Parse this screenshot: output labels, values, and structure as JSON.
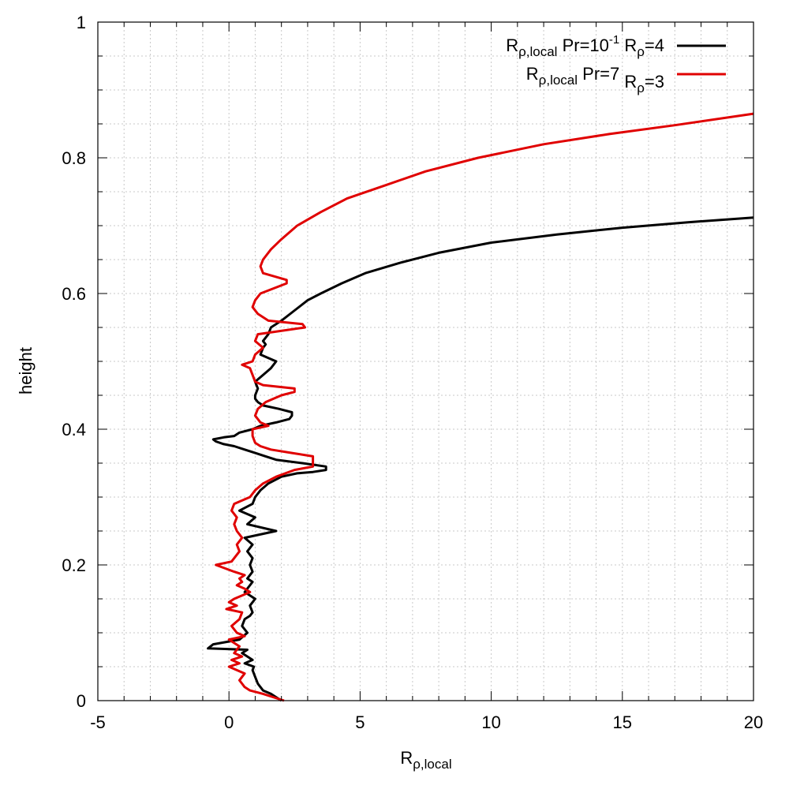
{
  "chart_data": {
    "type": "line",
    "title": "",
    "xlabel": {
      "main": "R",
      "sub": "ρ,local"
    },
    "ylabel": "height",
    "xlim": [
      -5,
      20
    ],
    "ylim": [
      0,
      1
    ],
    "xticks": [
      -5,
      0,
      5,
      10,
      15,
      20
    ],
    "xtick_labels": [
      "-5",
      "0",
      "5",
      "10",
      "15",
      "20"
    ],
    "yticks": [
      0,
      0.2,
      0.4,
      0.6,
      0.8,
      1
    ],
    "ytick_labels": [
      "0",
      "0.2",
      "0.4",
      "0.6",
      "0.8",
      "1"
    ],
    "grid": true,
    "legend_position": "top-right",
    "series": [
      {
        "name": "R_rho,local Pr=10^-1 R_rho=4",
        "legend": {
          "r": "R",
          "rsub": "ρ,local",
          "pr": " Pr=10",
          "prsup": "-1",
          "r2": " R",
          "r2sub": "ρ",
          "tail": "=4"
        },
        "color": "#000000",
        "points": [
          [
            2.0,
            0
          ],
          [
            1.6,
            0.01
          ],
          [
            1.3,
            0.015
          ],
          [
            1.2,
            0.02
          ],
          [
            1.1,
            0.025
          ],
          [
            1.05,
            0.03
          ],
          [
            1.0,
            0.035
          ],
          [
            0.9,
            0.045
          ],
          [
            0.95,
            0.05
          ],
          [
            0.6,
            0.055
          ],
          [
            0.9,
            0.06
          ],
          [
            0.5,
            0.07
          ],
          [
            0.7,
            0.075
          ],
          [
            -0.8,
            0.077
          ],
          [
            -0.6,
            0.083
          ],
          [
            0.4,
            0.09
          ],
          [
            0.7,
            0.1
          ],
          [
            0.5,
            0.11
          ],
          [
            0.6,
            0.12
          ],
          [
            0.8,
            0.125
          ],
          [
            0.9,
            0.13
          ],
          [
            0.8,
            0.14
          ],
          [
            1.0,
            0.15
          ],
          [
            0.6,
            0.16
          ],
          [
            0.9,
            0.175
          ],
          [
            0.7,
            0.18
          ],
          [
            0.9,
            0.19
          ],
          [
            0.8,
            0.2
          ],
          [
            0.9,
            0.21
          ],
          [
            0.7,
            0.22
          ],
          [
            0.9,
            0.23
          ],
          [
            0.6,
            0.24
          ],
          [
            1.8,
            0.25
          ],
          [
            0.7,
            0.26
          ],
          [
            1.0,
            0.27
          ],
          [
            0.4,
            0.28
          ],
          [
            0.9,
            0.29
          ],
          [
            1.0,
            0.3
          ],
          [
            1.2,
            0.31
          ],
          [
            1.5,
            0.32
          ],
          [
            2.0,
            0.33
          ],
          [
            2.6,
            0.335
          ],
          [
            3.2,
            0.337
          ],
          [
            3.7,
            0.34
          ],
          [
            3.7,
            0.345
          ],
          [
            2.8,
            0.35
          ],
          [
            1.8,
            0.355
          ],
          [
            1.4,
            0.36
          ],
          [
            1.0,
            0.365
          ],
          [
            0.6,
            0.37
          ],
          [
            0.2,
            0.375
          ],
          [
            -0.2,
            0.378
          ],
          [
            -0.5,
            0.382
          ],
          [
            -0.6,
            0.385
          ],
          [
            -0.2,
            0.388
          ],
          [
            0.2,
            0.39
          ],
          [
            0.4,
            0.395
          ],
          [
            0.9,
            0.4
          ],
          [
            1.2,
            0.405
          ],
          [
            1.8,
            0.41
          ],
          [
            2.3,
            0.415
          ],
          [
            2.4,
            0.42
          ],
          [
            2.4,
            0.425
          ],
          [
            1.9,
            0.43
          ],
          [
            1.3,
            0.435
          ],
          [
            1.1,
            0.44
          ],
          [
            1.0,
            0.445
          ],
          [
            1.0,
            0.45
          ],
          [
            1.1,
            0.46
          ],
          [
            1.0,
            0.47
          ],
          [
            1.3,
            0.48
          ],
          [
            1.6,
            0.49
          ],
          [
            1.8,
            0.5
          ],
          [
            1.5,
            0.505
          ],
          [
            1.2,
            0.51
          ],
          [
            1.3,
            0.52
          ],
          [
            1.4,
            0.525
          ],
          [
            1.3,
            0.53
          ],
          [
            1.5,
            0.54
          ],
          [
            1.6,
            0.55
          ],
          [
            2.0,
            0.56
          ],
          [
            2.5,
            0.575
          ],
          [
            3.0,
            0.59
          ],
          [
            3.5,
            0.6
          ],
          [
            4.3,
            0.615
          ],
          [
            5.2,
            0.63
          ],
          [
            6.5,
            0.645
          ],
          [
            8.0,
            0.66
          ],
          [
            10.0,
            0.675
          ],
          [
            12.5,
            0.687
          ],
          [
            15.0,
            0.697
          ],
          [
            17.5,
            0.705
          ],
          [
            20.0,
            0.712
          ]
        ]
      },
      {
        "name": "R_rho,local Pr=7 R_rho=3",
        "legend": {
          "r": "R",
          "rsub": "ρ,local",
          "pr": " Pr=7",
          "prsup": "",
          "r2": " R",
          "r2sub": "ρ",
          "tail": "=3"
        },
        "color": "#e00000",
        "points": [
          [
            2.1,
            0
          ],
          [
            1.3,
            0.01
          ],
          [
            0.8,
            0.015
          ],
          [
            0.6,
            0.02
          ],
          [
            0.5,
            0.025
          ],
          [
            0.4,
            0.03
          ],
          [
            0.6,
            0.04
          ],
          [
            0.0,
            0.05
          ],
          [
            0.4,
            0.055
          ],
          [
            0.1,
            0.06
          ],
          [
            0.5,
            0.065
          ],
          [
            0.2,
            0.07
          ],
          [
            0.4,
            0.08
          ],
          [
            0.0,
            0.09
          ],
          [
            0.6,
            0.095
          ],
          [
            0.3,
            0.1
          ],
          [
            0.1,
            0.11
          ],
          [
            0.4,
            0.12
          ],
          [
            0.5,
            0.13
          ],
          [
            -0.1,
            0.135
          ],
          [
            0.3,
            0.14
          ],
          [
            0.0,
            0.145
          ],
          [
            0.2,
            0.15
          ],
          [
            0.5,
            0.155
          ],
          [
            0.8,
            0.16
          ],
          [
            0.6,
            0.165
          ],
          [
            0.3,
            0.17
          ],
          [
            0.5,
            0.175
          ],
          [
            0.4,
            0.18
          ],
          [
            0.6,
            0.185
          ],
          [
            0.2,
            0.19
          ],
          [
            -0.5,
            0.2
          ],
          [
            0.1,
            0.205
          ],
          [
            0.2,
            0.21
          ],
          [
            0.4,
            0.22
          ],
          [
            0.3,
            0.23
          ],
          [
            0.5,
            0.24
          ],
          [
            0.3,
            0.25
          ],
          [
            0.2,
            0.26
          ],
          [
            0.3,
            0.27
          ],
          [
            0.1,
            0.28
          ],
          [
            0.2,
            0.29
          ],
          [
            0.8,
            0.3
          ],
          [
            1.0,
            0.31
          ],
          [
            1.3,
            0.32
          ],
          [
            1.8,
            0.33
          ],
          [
            2.5,
            0.34
          ],
          [
            3.2,
            0.345
          ],
          [
            3.2,
            0.36
          ],
          [
            2.4,
            0.365
          ],
          [
            1.6,
            0.37
          ],
          [
            1.2,
            0.375
          ],
          [
            1.0,
            0.38
          ],
          [
            0.9,
            0.39
          ],
          [
            0.9,
            0.4
          ],
          [
            1.5,
            0.405
          ],
          [
            1.2,
            0.41
          ],
          [
            1.0,
            0.42
          ],
          [
            1.1,
            0.43
          ],
          [
            1.4,
            0.44
          ],
          [
            2.0,
            0.45
          ],
          [
            2.5,
            0.455
          ],
          [
            2.5,
            0.46
          ],
          [
            1.3,
            0.465
          ],
          [
            1.0,
            0.47
          ],
          [
            0.9,
            0.48
          ],
          [
            0.8,
            0.49
          ],
          [
            0.5,
            0.495
          ],
          [
            0.9,
            0.5
          ],
          [
            1.0,
            0.51
          ],
          [
            1.3,
            0.52
          ],
          [
            1.0,
            0.53
          ],
          [
            1.1,
            0.54
          ],
          [
            2.9,
            0.55
          ],
          [
            2.8,
            0.555
          ],
          [
            1.5,
            0.56
          ],
          [
            1.1,
            0.57
          ],
          [
            0.9,
            0.58
          ],
          [
            1.0,
            0.59
          ],
          [
            1.2,
            0.6
          ],
          [
            2.2,
            0.615
          ],
          [
            2.2,
            0.62
          ],
          [
            1.3,
            0.63
          ],
          [
            1.2,
            0.64
          ],
          [
            1.3,
            0.65
          ],
          [
            1.6,
            0.665
          ],
          [
            2.0,
            0.68
          ],
          [
            2.6,
            0.7
          ],
          [
            3.5,
            0.72
          ],
          [
            4.5,
            0.74
          ],
          [
            6.0,
            0.76
          ],
          [
            7.5,
            0.78
          ],
          [
            9.5,
            0.8
          ],
          [
            12.0,
            0.82
          ],
          [
            14.5,
            0.835
          ],
          [
            17.0,
            0.848
          ],
          [
            20.0,
            0.865
          ]
        ]
      }
    ]
  }
}
